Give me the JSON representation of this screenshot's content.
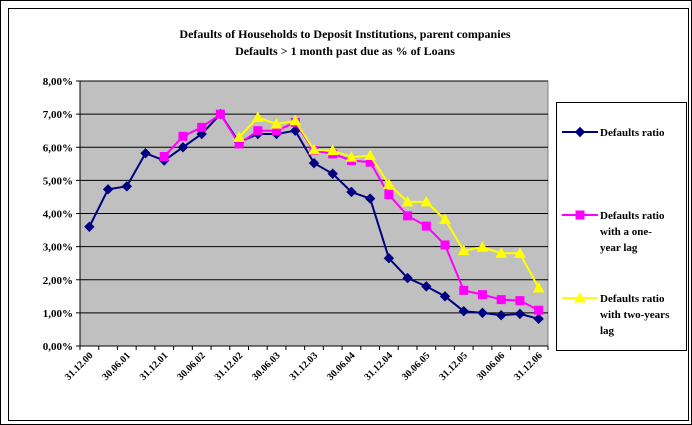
{
  "chart_data": {
    "type": "line",
    "title": "Defaults of Households to Deposit Institutions, parent companies",
    "subtitle": "Defaults > 1 month past due as % of Loans",
    "categories": [
      "31.12.00",
      null,
      "30.06.01",
      null,
      "31.12.01",
      null,
      "30.06.02",
      null,
      "31.12.02",
      null,
      "30.06.03",
      null,
      "31.12.03",
      null,
      "30.06.04",
      null,
      "31.12.04",
      null,
      "30.06.05",
      null,
      "31.12.05",
      null,
      "30.06.06",
      null,
      "31.12.06"
    ],
    "series": [
      {
        "name": "Defaults ratio",
        "color": "#000080",
        "marker": "diamond",
        "values": [
          3.6,
          4.73,
          4.82,
          5.82,
          5.6,
          6.0,
          6.4,
          7.0,
          6.15,
          6.4,
          6.4,
          6.5,
          5.52,
          5.2,
          4.65,
          4.45,
          2.65,
          2.05,
          1.8,
          1.5,
          1.05,
          1.0,
          0.93,
          0.97,
          0.82
        ]
      },
      {
        "name": "Defaults ratio with a one-year lag",
        "color": "#ff00ff",
        "marker": "square",
        "values": [
          null,
          null,
          null,
          null,
          5.72,
          6.33,
          6.6,
          7.0,
          6.1,
          6.5,
          6.5,
          6.75,
          5.9,
          5.8,
          5.6,
          5.55,
          4.57,
          3.93,
          3.62,
          3.05,
          1.68,
          1.55,
          1.4,
          1.37,
          1.08
        ]
      },
      {
        "name": "Defaults ratio with two-years lag",
        "color": "#ffff00",
        "marker": "triangle",
        "values": [
          null,
          null,
          null,
          null,
          null,
          null,
          null,
          null,
          6.3,
          6.9,
          6.7,
          6.8,
          5.92,
          5.9,
          5.7,
          5.75,
          4.88,
          4.35,
          4.35,
          3.82,
          2.88,
          2.98,
          2.8,
          2.8,
          1.75
        ]
      }
    ],
    "ylim": [
      0,
      8
    ],
    "yticks": [
      {
        "value": 0,
        "label": "0,00%"
      },
      {
        "value": 1,
        "label": "1,00%"
      },
      {
        "value": 2,
        "label": "2,00%"
      },
      {
        "value": 3,
        "label": "3,00%"
      },
      {
        "value": 4,
        "label": "4,00%"
      },
      {
        "value": 5,
        "label": "5,00%"
      },
      {
        "value": 6,
        "label": "6,00%"
      },
      {
        "value": 7,
        "label": "7,00%"
      },
      {
        "value": 8,
        "label": "8,00%"
      }
    ],
    "grid": true,
    "plot_background": "#c0c0c0",
    "legend": "right"
  }
}
